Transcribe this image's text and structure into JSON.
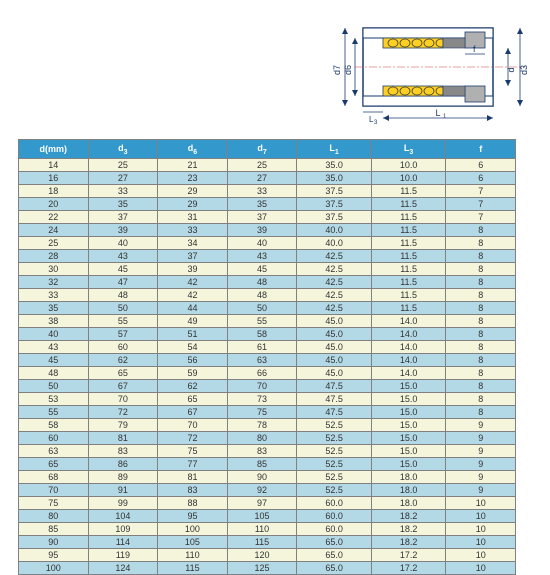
{
  "diagram": {
    "labels": {
      "d7": "d7",
      "d6": "d6",
      "d3": "d3",
      "L1": "L1",
      "L3": "L3",
      "f": "f"
    },
    "colors": {
      "outline": "#1a3a6e",
      "dim": "#1a3a6e",
      "center": "#d04040",
      "yellow": "#ffd020",
      "gray": "#b0b0b0",
      "white": "#ffffff",
      "hatch": "#404040"
    }
  },
  "table": {
    "header_bg": "#3399cc",
    "header_fg": "#ffffff",
    "row_even_bg": "#f5f5dc",
    "row_odd_bg": "#b3d9e6",
    "border": "#808080",
    "columns": [
      "d(mm)",
      "d3",
      "d6",
      "d7",
      "L1",
      "L3",
      "f"
    ],
    "col_widths": [
      "14%",
      "14%",
      "14%",
      "14%",
      "15%",
      "15%",
      "14%"
    ],
    "sub_cols": [
      false,
      true,
      true,
      true,
      true,
      true,
      false
    ],
    "rows": [
      [
        "14",
        "25",
        "21",
        "25",
        "35.0",
        "10.0",
        "6"
      ],
      [
        "16",
        "27",
        "23",
        "27",
        "35.0",
        "10.0",
        "6"
      ],
      [
        "18",
        "33",
        "29",
        "33",
        "37.5",
        "11.5",
        "7"
      ],
      [
        "20",
        "35",
        "29",
        "35",
        "37.5",
        "11.5",
        "7"
      ],
      [
        "22",
        "37",
        "31",
        "37",
        "37.5",
        "11.5",
        "7"
      ],
      [
        "24",
        "39",
        "33",
        "39",
        "40.0",
        "11.5",
        "8"
      ],
      [
        "25",
        "40",
        "34",
        "40",
        "40.0",
        "11.5",
        "8"
      ],
      [
        "28",
        "43",
        "37",
        "43",
        "42.5",
        "11.5",
        "8"
      ],
      [
        "30",
        "45",
        "39",
        "45",
        "42.5",
        "11.5",
        "8"
      ],
      [
        "32",
        "47",
        "42",
        "48",
        "42.5",
        "11.5",
        "8"
      ],
      [
        "33",
        "48",
        "42",
        "48",
        "42.5",
        "11.5",
        "8"
      ],
      [
        "35",
        "50",
        "44",
        "50",
        "42.5",
        "11.5",
        "8"
      ],
      [
        "38",
        "55",
        "49",
        "55",
        "45.0",
        "14.0",
        "8"
      ],
      [
        "40",
        "57",
        "51",
        "58",
        "45.0",
        "14.0",
        "8"
      ],
      [
        "43",
        "60",
        "54",
        "61",
        "45.0",
        "14.0",
        "8"
      ],
      [
        "45",
        "62",
        "56",
        "63",
        "45.0",
        "14.0",
        "8"
      ],
      [
        "48",
        "65",
        "59",
        "66",
        "45.0",
        "14.0",
        "8"
      ],
      [
        "50",
        "67",
        "62",
        "70",
        "47.5",
        "15.0",
        "8"
      ],
      [
        "53",
        "70",
        "65",
        "73",
        "47.5",
        "15.0",
        "8"
      ],
      [
        "55",
        "72",
        "67",
        "75",
        "47.5",
        "15.0",
        "8"
      ],
      [
        "58",
        "79",
        "70",
        "78",
        "52.5",
        "15.0",
        "9"
      ],
      [
        "60",
        "81",
        "72",
        "80",
        "52.5",
        "15.0",
        "9"
      ],
      [
        "63",
        "83",
        "75",
        "83",
        "52.5",
        "15.0",
        "9"
      ],
      [
        "65",
        "86",
        "77",
        "85",
        "52.5",
        "15.0",
        "9"
      ],
      [
        "68",
        "89",
        "81",
        "90",
        "52.5",
        "18.0",
        "9"
      ],
      [
        "70",
        "91",
        "83",
        "92",
        "52.5",
        "18.0",
        "9"
      ],
      [
        "75",
        "99",
        "88",
        "97",
        "60.0",
        "18.0",
        "10"
      ],
      [
        "80",
        "104",
        "95",
        "105",
        "60.0",
        "18.2",
        "10"
      ],
      [
        "85",
        "109",
        "100",
        "110",
        "60.0",
        "18.2",
        "10"
      ],
      [
        "90",
        "114",
        "105",
        "115",
        "65.0",
        "18.2",
        "10"
      ],
      [
        "95",
        "119",
        "110",
        "120",
        "65.0",
        "17.2",
        "10"
      ],
      [
        "100",
        "124",
        "115",
        "125",
        "65.0",
        "17.2",
        "10"
      ]
    ]
  }
}
